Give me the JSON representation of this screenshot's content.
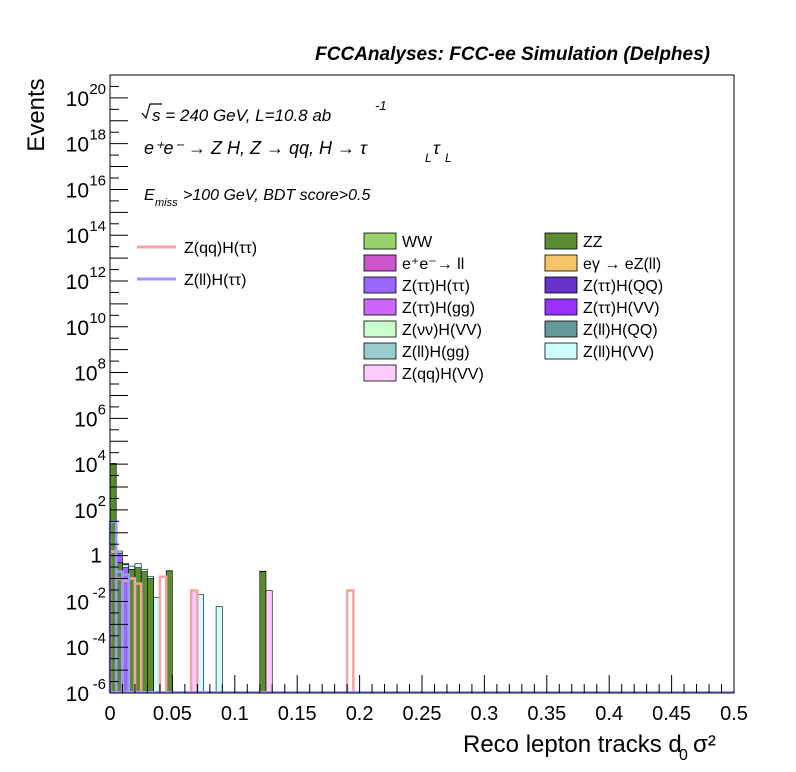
{
  "chart_data": {
    "type": "bar",
    "header": "FCCAnalyses: FCC-ee Simulation (Delphes)",
    "xlabel": "Reco lepton tracks d",
    "xlabel_sub": "0",
    "xlabel_tail": "σ²",
    "ylabel": "Events",
    "xlim": [
      0,
      0.5
    ],
    "ylim": [
      1e-06,
      1e+21
    ],
    "yscale": "log",
    "x_ticks": [
      "0",
      "0.05",
      "0.1",
      "0.15",
      "0.2",
      "0.25",
      "0.3",
      "0.35",
      "0.4",
      "0.45",
      "0.5"
    ],
    "y_tick_exponents": [
      -6,
      -4,
      -2,
      0,
      2,
      4,
      6,
      8,
      10,
      12,
      14,
      16,
      18,
      20
    ],
    "y_tick_zero_label": "1",
    "y_tick_base": "10",
    "annotations": {
      "sqrt_s": "s = 240 GeV, L=10.8 ab",
      "lumi_exp": "-1",
      "process": "e⁺e⁻ → Z H, Z → qq, H → τ",
      "process_sub1": "L",
      "process_tau": "τ",
      "process_sub2": "L",
      "emiss": "E",
      "emiss_sub": "miss",
      "cuts": ">100 GeV, BDT score>0.5"
    },
    "legend_signal": [
      {
        "name": "Z(qq)H(ττ)",
        "color": "#f4a2a2"
      },
      {
        "name": "Z(ll)H(ττ)",
        "color": "#9999ff"
      }
    ],
    "legend_bkg": [
      {
        "name": "WW",
        "color": "#99d26b"
      },
      {
        "name": "ZZ",
        "color": "#5a8b2f"
      },
      {
        "name": "e⁺e⁻→ ll",
        "color": "#cc55cc"
      },
      {
        "name": "eγ → eZ(ll)",
        "color": "#f6c567"
      },
      {
        "name": "Z(ττ)H(ττ)",
        "color": "#9966ff"
      },
      {
        "name": "Z(ττ)H(QQ)",
        "color": "#6633cc"
      },
      {
        "name": "Z(ττ)H(gg)",
        "color": "#cc66ff"
      },
      {
        "name": "Z(ττ)H(VV)",
        "color": "#9933ff"
      },
      {
        "name": "Z(νν)H(VV)",
        "color": "#ccffcc"
      },
      {
        "name": "Z(ll)H(QQ)",
        "color": "#669999"
      },
      {
        "name": "Z(ll)H(gg)",
        "color": "#99cccc"
      },
      {
        "name": "Z(ll)H(VV)",
        "color": "#ccffff"
      },
      {
        "name": "Z(qq)H(VV)",
        "color": "#ffccff"
      }
    ],
    "bin_width": 0.005,
    "stack_bins": [
      {
        "x": 0.0,
        "segments": [
          [
            "ZZ",
            10000
          ],
          [
            "eγ → eZ(ll)",
            300
          ],
          [
            "Z(ττ)H(ττ)",
            200
          ],
          [
            "Z(ll)H(gg)",
            50
          ],
          [
            "Z(ll)H(VV)",
            10
          ]
        ]
      },
      {
        "x": 0.005,
        "segments": [
          [
            "ZZ",
            0.5
          ],
          [
            "Z(ττ)H(ττ)",
            0.8
          ],
          [
            "Z(ll)H(VV)",
            0.3
          ]
        ]
      },
      {
        "x": 0.01,
        "segments": [
          [
            "Z(ττ)H(ττ)",
            0.3
          ],
          [
            "Z(ll)H(VV)",
            0.1
          ],
          [
            "ZZ",
            0.05
          ]
        ]
      },
      {
        "x": 0.015,
        "segments": [
          [
            "ZZ",
            0.25
          ],
          [
            "Z(ll)H(VV)",
            0.1
          ]
        ]
      },
      {
        "x": 0.02,
        "segments": [
          [
            "ZZ",
            0.3
          ],
          [
            "Z(ll)H(VV)",
            0.15
          ]
        ]
      },
      {
        "x": 0.025,
        "segments": [
          [
            "ZZ",
            0.2
          ],
          [
            "Z(ll)H(VV)",
            0.05
          ]
        ]
      },
      {
        "x": 0.03,
        "segments": [
          [
            "ZZ",
            0.1
          ],
          [
            "Z(ll)H(VV)",
            0.02
          ]
        ]
      },
      {
        "x": 0.035,
        "segments": [
          [
            "Z(ll)H(VV)",
            0.015
          ]
        ]
      },
      {
        "x": 0.045,
        "segments": [
          [
            "ZZ",
            0.2
          ],
          [
            "Z(ll)H(VV)",
            0.02
          ]
        ]
      },
      {
        "x": 0.065,
        "segments": [
          [
            "Z(qq)H(VV)",
            0.03
          ]
        ]
      },
      {
        "x": 0.07,
        "segments": [
          [
            "Z(ll)H(VV)",
            0.02
          ]
        ]
      },
      {
        "x": 0.085,
        "segments": [
          [
            "Z(ll)H(VV)",
            0.006
          ]
        ]
      },
      {
        "x": 0.12,
        "segments": [
          [
            "ZZ",
            0.2
          ],
          [
            "Z(ll)H(VV)",
            0.01
          ]
        ]
      },
      {
        "x": 0.125,
        "segments": [
          [
            "Z(qq)H(VV)",
            0.03
          ]
        ]
      }
    ],
    "signal_hist": [
      {
        "name": "Z(qq)H(ττ)",
        "bins": [
          [
            0.0,
            1.5
          ],
          [
            0.005,
            0.1
          ],
          [
            0.01,
            0.08
          ],
          [
            0.015,
            0.1
          ],
          [
            0.02,
            0.06
          ],
          [
            0.04,
            0.12
          ],
          [
            0.065,
            0.03
          ],
          [
            0.19,
            0.03
          ]
        ]
      },
      {
        "name": "Z(ll)H(ττ)",
        "bins": [
          [
            0.0,
            30
          ],
          [
            0.005,
            0.2
          ],
          [
            0.01,
            0.15
          ]
        ]
      }
    ]
  }
}
